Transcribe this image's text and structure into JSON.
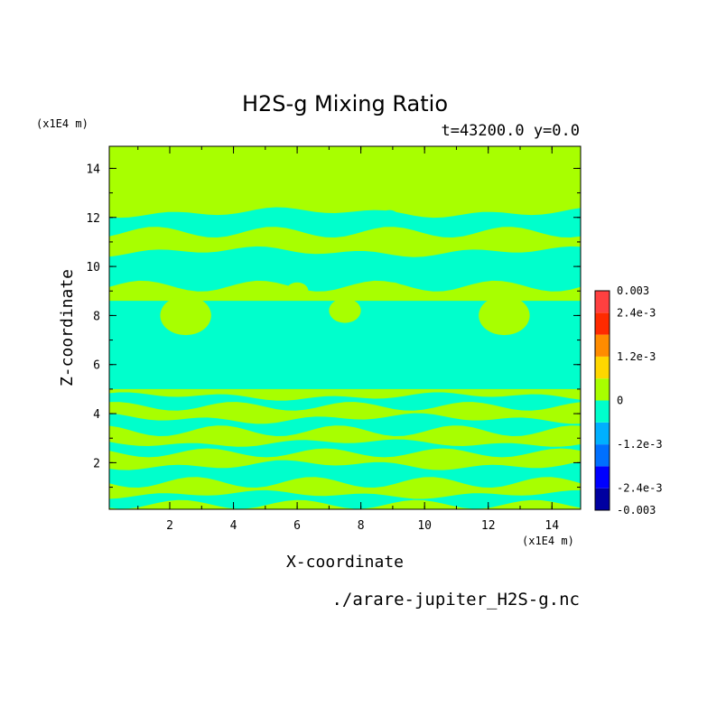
{
  "chart_data": {
    "type": "heatmap",
    "title": "H2S-g Mixing Ratio",
    "subtitle": "t=43200.0 y=0.0",
    "xlabel": "X-coordinate",
    "ylabel": "Z-coordinate",
    "x_unit": "(x1E4 m)",
    "z_unit": "(x1E4 m)",
    "source_file": "./arare-jupiter_H2S-g.nc",
    "xlim": [
      0.1,
      14.9
    ],
    "ylim": [
      0.1,
      14.9
    ],
    "x_ticks": [
      2,
      4,
      6,
      8,
      10,
      12,
      14
    ],
    "y_ticks": [
      2,
      4,
      6,
      8,
      10,
      12,
      14
    ],
    "colorbar": {
      "range": [
        -0.003,
        0.003
      ],
      "labels": [
        "0.003",
        "2.4e-3",
        "1.2e-3",
        "0",
        "-1.2e-3",
        "-2.4e-3",
        "-0.003"
      ],
      "label_values": [
        0.003,
        0.0024,
        0.0012,
        0,
        -0.0012,
        -0.0024,
        -0.003
      ],
      "levels": [
        -0.003,
        -0.0024,
        -0.0018,
        -0.0012,
        -0.0006,
        0,
        0.0006,
        0.0012,
        0.0018,
        0.0024,
        0.003
      ],
      "colors": [
        "#0000a0",
        "#0000ff",
        "#0070ff",
        "#00b0ff",
        "#00ffcc",
        "#a8ff00",
        "#ffd700",
        "#ff8c00",
        "#ff2a00",
        "#ff4040"
      ]
    },
    "background_value": 0.0003,
    "field": [
      {
        "z": [
          12.2,
          14.9
        ],
        "v": 0.0003
      },
      {
        "z": [
          11.4,
          12.2
        ],
        "v": -0.0003,
        "wavy": true
      },
      {
        "z": [
          9.2,
          10.6
        ],
        "v": -0.0003,
        "wavy": true
      },
      {
        "z": [
          5.0,
          8.6
        ],
        "v": -0.0003
      },
      {
        "z": [
          4.3,
          4.7
        ],
        "v": -0.0003,
        "wavy": true
      },
      {
        "z": [
          3.3,
          3.8
        ],
        "v": -0.0003,
        "wavy": true
      },
      {
        "z": [
          2.4,
          2.8
        ],
        "v": -0.0003,
        "wavy": true
      },
      {
        "z": [
          1.2,
          1.9
        ],
        "v": -0.0003,
        "wavy": true
      },
      {
        "z": [
          0.3,
          0.7
        ],
        "v": -0.0003,
        "wavy": true
      }
    ],
    "features": [
      {
        "x": 7.5,
        "z": 8.2,
        "r": 0.5,
        "v": 0.0003
      },
      {
        "x": 6.0,
        "z": 9.0,
        "r": 0.35,
        "v": 0.0003
      },
      {
        "x": 9.0,
        "z": 9.0,
        "r": 0.35,
        "v": 0.0003
      },
      {
        "x": 6.1,
        "z": 12.0,
        "r": 0.3,
        "v": -0.0003
      },
      {
        "x": 8.9,
        "z": 12.0,
        "r": 0.3,
        "v": -0.0003
      },
      {
        "x": 2.5,
        "z": 8.0,
        "r": 0.8,
        "v": 0.0003
      },
      {
        "x": 12.5,
        "z": 8.0,
        "r": 0.8,
        "v": 0.0003
      }
    ]
  }
}
